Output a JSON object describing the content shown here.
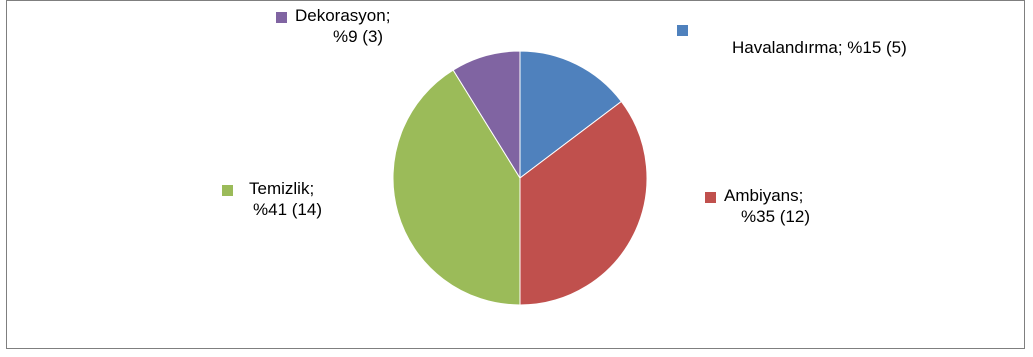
{
  "chart_data": {
    "type": "pie",
    "start_angle_deg": 0,
    "direction": "clockwise",
    "slices": [
      {
        "label": "Havalandırma",
        "percent_text": "%15",
        "count": 5,
        "color": "#4f81bd"
      },
      {
        "label": "Ambiyans",
        "percent_text": "%35",
        "count": 12,
        "color": "#c0504d"
      },
      {
        "label": "Temizlik",
        "percent_text": "%41",
        "count": 14,
        "color": "#9bbb59"
      },
      {
        "label": "Dekorasyon",
        "percent_text": "%9",
        "count": 3,
        "color": "#8064a2"
      }
    ]
  },
  "labels": {
    "havalandirma": {
      "line1": "Havalandırma; %15 (5)"
    },
    "ambiyans": {
      "line1": "Ambiyans;",
      "line2": "%35 (12)"
    },
    "temizlik": {
      "line1": "Temizlik;",
      "line2": "%41 (14)"
    },
    "dekorasyon": {
      "line1": "Dekorasyon;",
      "line2": "%9 (3)"
    }
  }
}
